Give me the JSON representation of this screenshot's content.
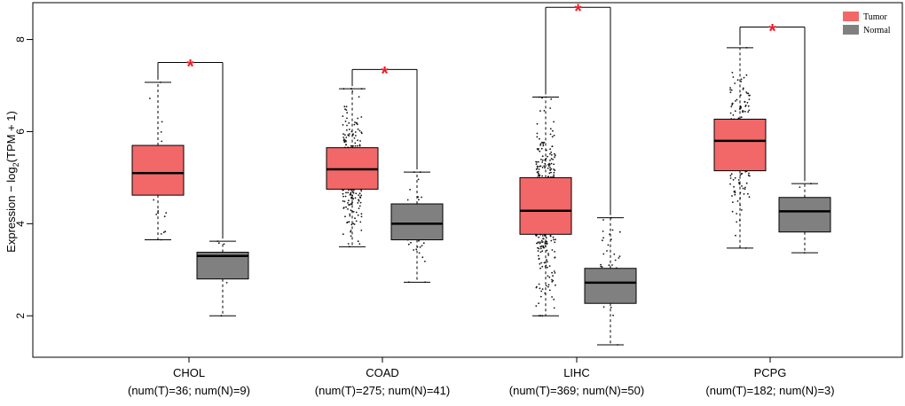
{
  "chart_data": {
    "type": "boxplot",
    "ylabel_main": "Expression − log",
    "ylabel_sub": "2",
    "ylabel_tail": "(TPM + 1)",
    "ylim": [
      1.1,
      8.8
    ],
    "yticks": [
      2,
      4,
      6,
      8
    ],
    "colors": {
      "Tumor": "#f26868",
      "Normal": "#808080",
      "star": "#e8202a"
    },
    "legend": [
      {
        "name": "Tumor",
        "color": "#f26868"
      },
      {
        "name": "Normal",
        "color": "#808080"
      }
    ],
    "star_label": "*",
    "groups": [
      {
        "name": "CHOL",
        "count_label": "(num(T)=36; num(N)=9)",
        "significance_bracket_y": 7.5,
        "tumor": {
          "n": 36,
          "min": 3.65,
          "q1": 4.62,
          "median": 5.1,
          "q3": 5.7,
          "max": 7.07
        },
        "normal": {
          "n": 9,
          "min": 2.0,
          "q1": 2.8,
          "median": 3.3,
          "q3": 3.38,
          "max": 3.62
        }
      },
      {
        "name": "COAD",
        "count_label": "(num(T)=275; num(N)=41)",
        "significance_bracket_y": 7.35,
        "tumor": {
          "n": 275,
          "min": 3.5,
          "q1": 4.75,
          "median": 5.18,
          "q3": 5.65,
          "max": 6.93
        },
        "normal": {
          "n": 41,
          "min": 2.73,
          "q1": 3.65,
          "median": 4.0,
          "q3": 4.43,
          "max": 5.12
        }
      },
      {
        "name": "LIHC",
        "count_label": "(num(T)=369; num(N)=50)",
        "significance_bracket_y": 8.7,
        "tumor": {
          "n": 369,
          "min": 2.0,
          "q1": 3.77,
          "median": 4.28,
          "q3": 5.0,
          "max": 6.75
        },
        "normal": {
          "n": 50,
          "min": 1.37,
          "q1": 2.27,
          "median": 2.72,
          "q3": 3.03,
          "max": 4.13
        }
      },
      {
        "name": "PCPG",
        "count_label": "(num(T)=182; num(N)=3)",
        "significance_bracket_y": 8.27,
        "tumor": {
          "n": 182,
          "min": 3.47,
          "q1": 5.15,
          "median": 5.8,
          "q3": 6.27,
          "max": 7.82
        },
        "normal": {
          "n": 3,
          "min": 3.37,
          "q1": 3.82,
          "median": 4.27,
          "q3": 4.57,
          "max": 4.87
        }
      }
    ]
  }
}
